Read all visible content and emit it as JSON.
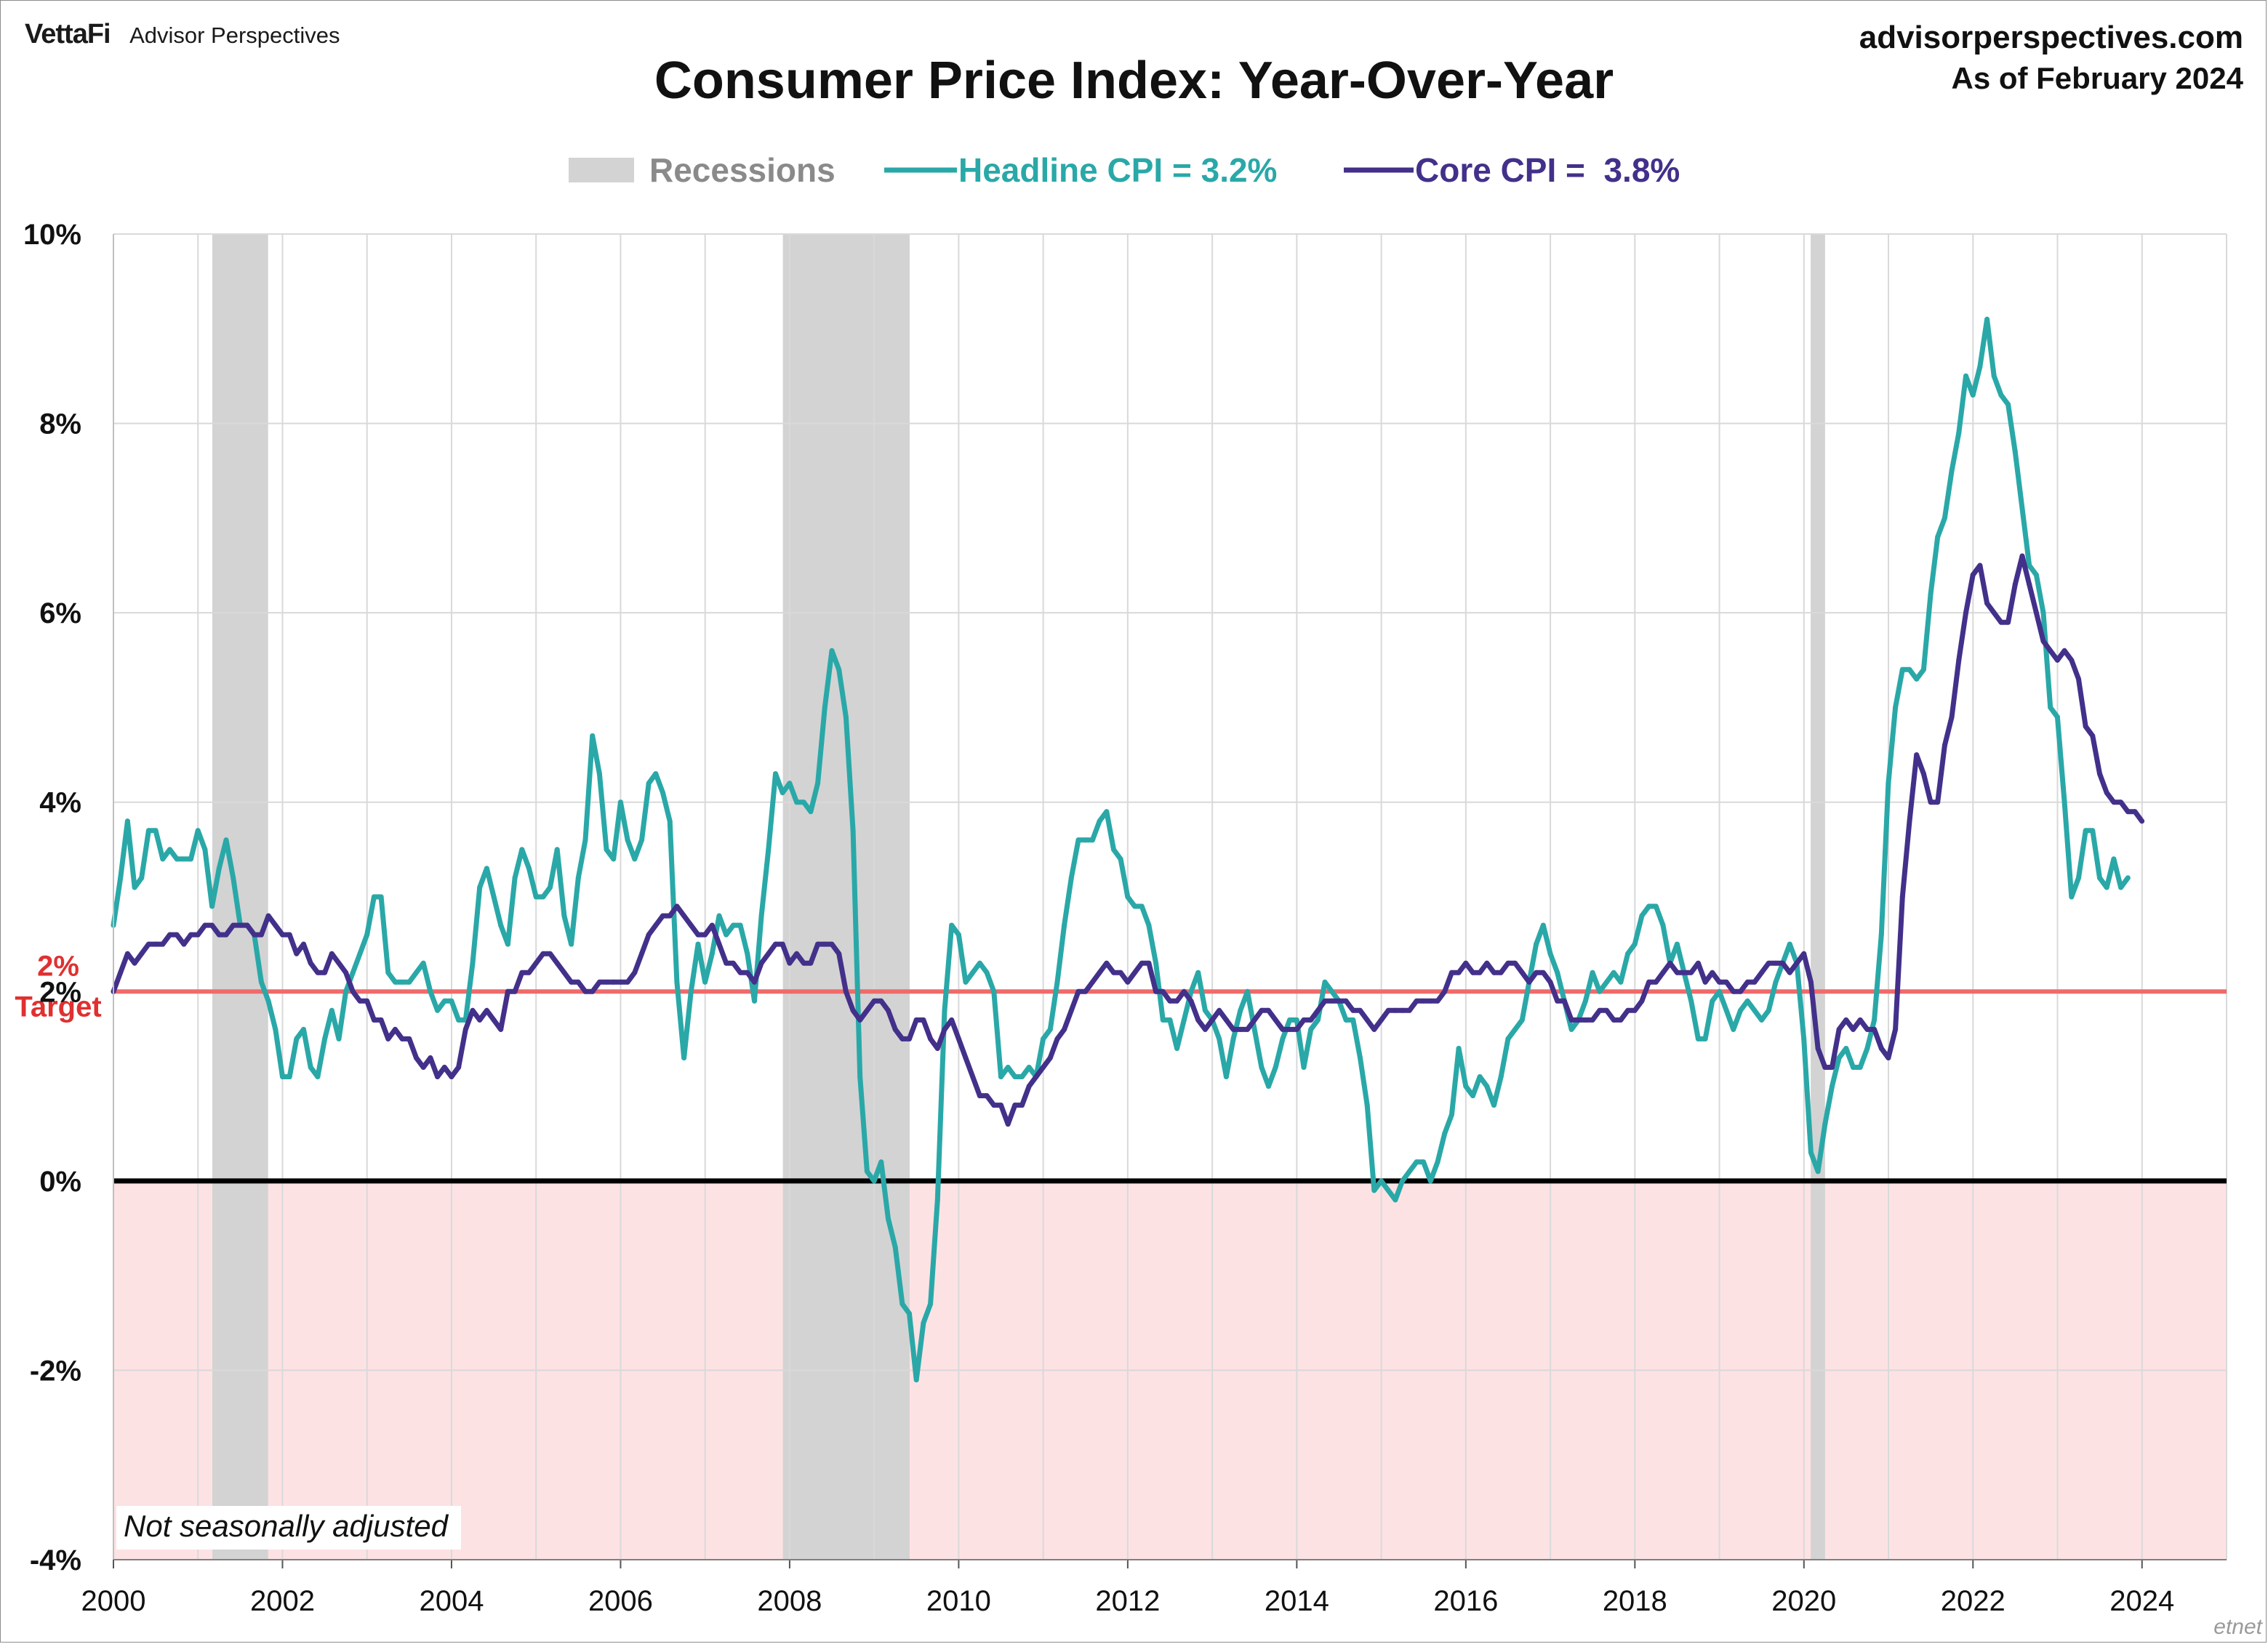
{
  "header": {
    "brand": "VettaFi",
    "brand_sub": "Advisor Perspectives",
    "site": "advisorperspectives.com",
    "as_of": "As of February 2024"
  },
  "note": "Not seasonally adjusted",
  "watermark": "etnet",
  "chart_data": {
    "type": "line",
    "title": "Consumer Price Index: Year-Over-Year",
    "x_range": [
      2000.0,
      2025.0
    ],
    "ylim": [
      -4,
      10
    ],
    "yticks": [
      -4,
      -2,
      0,
      2,
      4,
      6,
      8,
      10
    ],
    "ytick_labels": [
      "-4%",
      "-2%",
      "0%",
      "2%",
      "4%",
      "6%",
      "8%",
      "10%"
    ],
    "xticks": [
      2000,
      2002,
      2004,
      2006,
      2008,
      2010,
      2012,
      2014,
      2016,
      2018,
      2020,
      2022,
      2024
    ],
    "xtick_labels": [
      "2000",
      "2002",
      "2004",
      "2006",
      "2008",
      "2010",
      "2012",
      "2014",
      "2016",
      "2018",
      "2020",
      "2022",
      "2024"
    ],
    "grid": true,
    "legend_position": "top-center",
    "legend": [
      {
        "label": "Recessions",
        "kind": "band",
        "color": "#d3d3d3",
        "text_color": "#8a8a8a"
      },
      {
        "label": "Headline CPI = 3.2%",
        "kind": "line",
        "color": "#2aa8a8"
      },
      {
        "label": "Core CPI =  3.8%",
        "kind": "line",
        "color": "#43308a"
      }
    ],
    "recessions": [
      [
        2001.17,
        2001.83
      ],
      [
        2007.92,
        2009.42
      ],
      [
        2020.08,
        2020.25
      ]
    ],
    "target": {
      "value": 2,
      "label_value": "2%",
      "label_text": "Target",
      "color": "#f06a6a"
    },
    "negative_zone_color": "#fde2e4",
    "zero_line_color": "#000000",
    "series": [
      {
        "name": "Headline CPI",
        "color": "#2aa8a8",
        "start": 2000.0,
        "step": 0.08333,
        "values": [
          2.7,
          3.2,
          3.8,
          3.1,
          3.2,
          3.7,
          3.7,
          3.4,
          3.5,
          3.4,
          3.4,
          3.4,
          3.7,
          3.5,
          2.9,
          3.3,
          3.6,
          3.2,
          2.7,
          2.7,
          2.6,
          2.1,
          1.9,
          1.6,
          1.1,
          1.1,
          1.5,
          1.6,
          1.2,
          1.1,
          1.5,
          1.8,
          1.5,
          2.0,
          2.2,
          2.4,
          2.6,
          3.0,
          3.0,
          2.2,
          2.1,
          2.1,
          2.1,
          2.2,
          2.3,
          2.0,
          1.8,
          1.9,
          1.9,
          1.7,
          1.7,
          2.3,
          3.1,
          3.3,
          3.0,
          2.7,
          2.5,
          3.2,
          3.5,
          3.3,
          3.0,
          3.0,
          3.1,
          3.5,
          2.8,
          2.5,
          3.2,
          3.6,
          4.7,
          4.3,
          3.5,
          3.4,
          4.0,
          3.6,
          3.4,
          3.6,
          4.2,
          4.3,
          4.1,
          3.8,
          2.1,
          1.3,
          2.0,
          2.5,
          2.1,
          2.4,
          2.8,
          2.6,
          2.7,
          2.7,
          2.4,
          1.9,
          2.8,
          3.5,
          4.3,
          4.1,
          4.2,
          4.0,
          4.0,
          3.9,
          4.2,
          5.0,
          5.6,
          5.4,
          4.9,
          3.7,
          1.1,
          0.1,
          0.0,
          0.2,
          -0.4,
          -0.7,
          -1.3,
          -1.4,
          -2.1,
          -1.5,
          -1.3,
          -0.2,
          1.8,
          2.7,
          2.6,
          2.1,
          2.2,
          2.3,
          2.2,
          2.0,
          1.1,
          1.2,
          1.1,
          1.1,
          1.2,
          1.1,
          1.5,
          1.6,
          2.1,
          2.7,
          3.2,
          3.6,
          3.6,
          3.6,
          3.8,
          3.9,
          3.5,
          3.4,
          3.0,
          2.9,
          2.9,
          2.7,
          2.3,
          1.7,
          1.7,
          1.4,
          1.7,
          2.0,
          2.2,
          1.8,
          1.7,
          1.5,
          1.1,
          1.5,
          1.8,
          2.0,
          1.6,
          1.2,
          1.0,
          1.2,
          1.5,
          1.7,
          1.7,
          1.2,
          1.6,
          1.7,
          2.1,
          2.0,
          1.9,
          1.7,
          1.7,
          1.3,
          0.8,
          -0.1,
          0.0,
          -0.1,
          -0.2,
          0.0,
          0.1,
          0.2,
          0.2,
          0.0,
          0.2,
          0.5,
          0.7,
          1.4,
          1.0,
          0.9,
          1.1,
          1.0,
          0.8,
          1.1,
          1.5,
          1.6,
          1.7,
          2.1,
          2.5,
          2.7,
          2.4,
          2.2,
          1.9,
          1.6,
          1.7,
          1.9,
          2.2,
          2.0,
          2.1,
          2.2,
          2.1,
          2.4,
          2.5,
          2.8,
          2.9,
          2.9,
          2.7,
          2.3,
          2.5,
          2.2,
          1.9,
          1.5,
          1.5,
          1.9,
          2.0,
          1.8,
          1.6,
          1.8,
          1.9,
          1.8,
          1.7,
          1.8,
          2.1,
          2.3,
          2.5,
          2.3,
          1.5,
          0.3,
          0.1,
          0.6,
          1.0,
          1.3,
          1.4,
          1.2,
          1.2,
          1.4,
          1.7,
          2.6,
          4.2,
          5.0,
          5.4,
          5.4,
          5.3,
          5.4,
          6.2,
          6.8,
          7.0,
          7.5,
          7.9,
          8.5,
          8.3,
          8.6,
          9.1,
          8.5,
          8.3,
          8.2,
          7.7,
          7.1,
          6.5,
          6.4,
          6.0,
          5.0,
          4.9,
          4.0,
          3.0,
          3.2,
          3.7,
          3.7,
          3.2,
          3.1,
          3.4,
          3.1,
          3.2
        ]
      },
      {
        "name": "Core CPI",
        "color": "#43308a",
        "start": 2000.0,
        "step": 0.08333,
        "values": [
          2.0,
          2.2,
          2.4,
          2.3,
          2.4,
          2.5,
          2.5,
          2.5,
          2.6,
          2.6,
          2.5,
          2.6,
          2.6,
          2.7,
          2.7,
          2.6,
          2.6,
          2.7,
          2.7,
          2.7,
          2.6,
          2.6,
          2.8,
          2.7,
          2.6,
          2.6,
          2.4,
          2.5,
          2.3,
          2.2,
          2.2,
          2.4,
          2.3,
          2.2,
          2.0,
          1.9,
          1.9,
          1.7,
          1.7,
          1.5,
          1.6,
          1.5,
          1.5,
          1.3,
          1.2,
          1.3,
          1.1,
          1.2,
          1.1,
          1.2,
          1.6,
          1.8,
          1.7,
          1.8,
          1.7,
          1.6,
          2.0,
          2.0,
          2.2,
          2.2,
          2.3,
          2.4,
          2.4,
          2.3,
          2.2,
          2.1,
          2.1,
          2.0,
          2.0,
          2.1,
          2.1,
          2.1,
          2.1,
          2.1,
          2.2,
          2.4,
          2.6,
          2.7,
          2.8,
          2.8,
          2.9,
          2.8,
          2.7,
          2.6,
          2.6,
          2.7,
          2.5,
          2.3,
          2.3,
          2.2,
          2.2,
          2.1,
          2.3,
          2.4,
          2.5,
          2.5,
          2.3,
          2.4,
          2.3,
          2.3,
          2.5,
          2.5,
          2.5,
          2.4,
          2.0,
          1.8,
          1.7,
          1.8,
          1.9,
          1.9,
          1.8,
          1.6,
          1.5,
          1.5,
          1.7,
          1.7,
          1.5,
          1.4,
          1.6,
          1.7,
          1.5,
          1.3,
          1.1,
          0.9,
          0.9,
          0.8,
          0.8,
          0.6,
          0.8,
          0.8,
          1.0,
          1.1,
          1.2,
          1.3,
          1.5,
          1.6,
          1.8,
          2.0,
          2.0,
          2.1,
          2.2,
          2.3,
          2.2,
          2.2,
          2.1,
          2.2,
          2.3,
          2.3,
          2.0,
          2.0,
          1.9,
          1.9,
          2.0,
          1.9,
          1.7,
          1.6,
          1.7,
          1.8,
          1.7,
          1.6,
          1.6,
          1.6,
          1.7,
          1.8,
          1.8,
          1.7,
          1.6,
          1.6,
          1.6,
          1.7,
          1.7,
          1.8,
          1.9,
          1.9,
          1.9,
          1.9,
          1.8,
          1.8,
          1.7,
          1.6,
          1.7,
          1.8,
          1.8,
          1.8,
          1.8,
          1.9,
          1.9,
          1.9,
          1.9,
          2.0,
          2.2,
          2.2,
          2.3,
          2.2,
          2.2,
          2.3,
          2.2,
          2.2,
          2.3,
          2.3,
          2.2,
          2.1,
          2.2,
          2.2,
          2.1,
          1.9,
          1.9,
          1.7,
          1.7,
          1.7,
          1.7,
          1.8,
          1.8,
          1.7,
          1.7,
          1.8,
          1.8,
          1.9,
          2.1,
          2.1,
          2.2,
          2.3,
          2.2,
          2.2,
          2.2,
          2.3,
          2.1,
          2.2,
          2.1,
          2.1,
          2.0,
          2.0,
          2.1,
          2.1,
          2.2,
          2.3,
          2.3,
          2.3,
          2.2,
          2.3,
          2.4,
          2.1,
          1.4,
          1.2,
          1.2,
          1.6,
          1.7,
          1.6,
          1.7,
          1.6,
          1.6,
          1.4,
          1.3,
          1.6,
          3.0,
          3.8,
          4.5,
          4.3,
          4.0,
          4.0,
          4.6,
          4.9,
          5.5,
          6.0,
          6.4,
          6.5,
          6.1,
          6.0,
          5.9,
          5.9,
          6.3,
          6.6,
          6.3,
          6.0,
          5.7,
          5.6,
          5.5,
          5.6,
          5.5,
          5.3,
          4.8,
          4.7,
          4.3,
          4.1,
          4.0,
          4.0,
          3.9,
          3.9,
          3.8
        ]
      }
    ]
  }
}
